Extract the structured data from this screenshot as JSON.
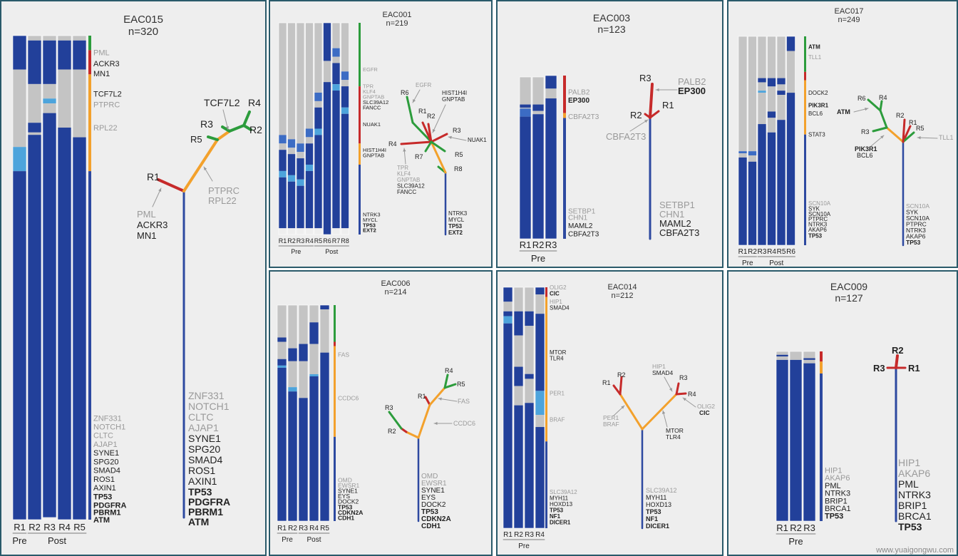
{
  "colors": {
    "dark": "#22409a",
    "mid": "#3c6cc4",
    "light": "#4da4dc",
    "grey": "#c4c4c4",
    "red": "#c62a2a",
    "orange": "#f3a12c",
    "green": "#2c9c3c",
    "trunk": "#2d49a0",
    "label_grey": "#9a9a9a",
    "label_dark": "#222222"
  },
  "watermark": "www.yuaigongwu.com",
  "panels": [
    {
      "id": "eac015",
      "name": "EAC015",
      "n": "n=320",
      "regions": [
        "R1",
        "R2",
        "R3",
        "R4",
        "R5"
      ],
      "groups": [
        {
          "label": "Pre",
          "from": 0,
          "to": 0
        },
        {
          "label": "Post",
          "from": 1,
          "to": 4
        }
      ],
      "stripe": [
        {
          "color": "green",
          "frac": 0.03
        },
        {
          "color": "red",
          "frac": 0.05
        },
        {
          "color": "orange",
          "frac": 0.2
        },
        {
          "color": "trunk",
          "frac": 0.72
        }
      ],
      "bar_labels": [
        {
          "text": "PML",
          "style": "grey",
          "at": 0.035
        },
        {
          "text": "ACKR3",
          "style": "dark",
          "at": 0.058
        },
        {
          "text": "MN1",
          "style": "dark",
          "at": 0.078
        },
        {
          "text": "TCF7L2",
          "style": "dark",
          "at": 0.12
        },
        {
          "text": "PTPRC",
          "style": "grey",
          "at": 0.142
        },
        {
          "text": "RPL22",
          "style": "grey",
          "at": 0.19
        },
        {
          "text": "ZNF331",
          "style": "grey",
          "at": 0.79
        },
        {
          "text": "NOTCH1",
          "style": "grey",
          "at": 0.808
        },
        {
          "text": "CLTC",
          "style": "grey",
          "at": 0.826
        },
        {
          "text": "AJAP1",
          "style": "grey",
          "at": 0.844
        },
        {
          "text": "SYNE1",
          "style": "dark",
          "at": 0.862
        },
        {
          "text": "SPG20",
          "style": "dark",
          "at": 0.88
        },
        {
          "text": "SMAD4",
          "style": "dark",
          "at": 0.898
        },
        {
          "text": "ROS1",
          "style": "dark",
          "at": 0.916
        },
        {
          "text": "AXIN1",
          "style": "dark",
          "at": 0.934
        },
        {
          "text": "TP53",
          "style": "bold",
          "at": 0.952
        },
        {
          "text": "PDGFRA",
          "style": "bold",
          "at": 0.97
        },
        {
          "text": "PBRM1",
          "style": "bold",
          "at": 0.985
        },
        {
          "text": "ATM",
          "style": "bold",
          "at": 1.0
        }
      ],
      "tree_labels": {
        "R1": "R1",
        "R2": "R2",
        "R3": "R3",
        "R4": "R4",
        "R5": "R5",
        "top_gene": "TCF7L2",
        "mid_genes": [
          "PTPRC",
          "RPL22"
        ],
        "r1_genes": [
          "PML",
          "ACKR3",
          "MN1"
        ],
        "trunk_genes_grey": [
          "ZNF331",
          "NOTCH1",
          "CLTC",
          "AJAP1"
        ],
        "trunk_genes_dark": [
          "SYNE1",
          "SPG20",
          "SMAD4",
          "ROS1",
          "AXIN1"
        ],
        "trunk_genes_bold": [
          "TP53",
          "PDGFRA",
          "PBRM1",
          "ATM"
        ]
      }
    },
    {
      "id": "eac001",
      "name": "EAC001",
      "n": "n=219",
      "regions": [
        "R1",
        "R2",
        "R3",
        "R4",
        "R5",
        "R6",
        "R7",
        "R8"
      ],
      "groups": [
        {
          "label": "Pre",
          "from": 0,
          "to": 3
        },
        {
          "label": "Post",
          "from": 4,
          "to": 7
        }
      ],
      "stripe": [
        {
          "color": "green",
          "frac": 0.3
        },
        {
          "color": "red",
          "frac": 0.27
        },
        {
          "color": "orange",
          "frac": 0.1
        },
        {
          "color": "trunk",
          "frac": 0.33
        }
      ],
      "bar_labels": [
        {
          "text": "EGFR",
          "style": "grey",
          "at": 0.22
        },
        {
          "text": "TPR",
          "style": "grey",
          "at": 0.3
        },
        {
          "text": "KLF4",
          "style": "grey",
          "at": 0.325
        },
        {
          "text": "GNPTAB",
          "style": "grey",
          "at": 0.35
        },
        {
          "text": "SLC39A12",
          "style": "dark",
          "at": 0.375
        },
        {
          "text": "FANCC",
          "style": "dark",
          "at": 0.4
        },
        {
          "text": "NUAK1",
          "style": "dark",
          "at": 0.48
        },
        {
          "text": "HIST1H4I",
          "style": "dark",
          "at": 0.6
        },
        {
          "text": "GNPTAB",
          "style": "dark",
          "at": 0.625
        },
        {
          "text": "NTRK3",
          "style": "dark",
          "at": 0.905
        },
        {
          "text": "MYCL",
          "style": "dark",
          "at": 0.93
        },
        {
          "text": "TP53",
          "style": "bold",
          "at": 0.955
        },
        {
          "text": "EXT2",
          "style": "bold",
          "at": 0.98
        }
      ],
      "tree_labels": {
        "R1": "R1",
        "R2": "R2",
        "R3": "R3",
        "R4": "R4",
        "R5": "R5",
        "R6": "R6",
        "R7": "R7",
        "R8": "R8",
        "egfr": "EGFR",
        "hist": [
          "HIST1H4I",
          "GNPTAB"
        ],
        "nuak": "NUAK1",
        "r4_genes": [
          "TPR",
          "KLF4",
          "GNPTAB",
          "SLC39A12",
          "FANCC"
        ],
        "trunk_genes_dark": [
          "NTRK3",
          "MYCL"
        ],
        "trunk_genes_bold": [
          "TP53",
          "EXT2"
        ]
      }
    },
    {
      "id": "eac003",
      "name": "EAC003",
      "n": "n=123",
      "regions": [
        "R1",
        "R2",
        "R3"
      ],
      "groups": [
        {
          "label": "Pre",
          "from": 0,
          "to": 2
        }
      ],
      "stripe": [
        {
          "color": "red",
          "frac": 0.23
        },
        {
          "color": "orange",
          "frac": 0.03
        },
        {
          "color": "trunk",
          "frac": 0.74
        }
      ],
      "bar_labels": [
        {
          "text": "PALB2",
          "style": "grey",
          "at": 0.1
        },
        {
          "text": "EP300",
          "style": "bold",
          "at": 0.15
        },
        {
          "text": "CBFA2T3",
          "style": "grey",
          "at": 0.25
        },
        {
          "text": "SETBP1",
          "style": "grey",
          "at": 0.83
        },
        {
          "text": "CHN1",
          "style": "grey",
          "at": 0.87
        },
        {
          "text": "MAML2",
          "style": "dark",
          "at": 0.92
        },
        {
          "text": "CBFA2T3",
          "style": "dark",
          "at": 0.97
        }
      ],
      "tree_labels": {
        "R1": "R1",
        "R2": "R2",
        "R3": "R3",
        "palb": "PALB2",
        "ep300": "EP300",
        "cbfa": "CBFA2T3",
        "trunk_genes_grey": [
          "SETBP1",
          "CHN1"
        ],
        "trunk_genes_dark": [
          "MAML2",
          "CBFA2T3"
        ]
      }
    },
    {
      "id": "eac017",
      "name": "EAC017",
      "n": "n=249",
      "regions": [
        "R1",
        "R2",
        "R3",
        "R4",
        "R5",
        "R6"
      ],
      "groups": [
        {
          "label": "Pre",
          "from": 0,
          "to": 1
        },
        {
          "label": "Post",
          "from": 2,
          "to": 5
        }
      ],
      "stripe": [
        {
          "color": "green",
          "frac": 0.17
        },
        {
          "color": "red",
          "frac": 0.04
        },
        {
          "color": "orange",
          "frac": 0.26
        },
        {
          "color": "trunk",
          "frac": 0.53
        }
      ],
      "bar_labels": [
        {
          "text": "ATM",
          "style": "bold",
          "at": 0.05
        },
        {
          "text": "TLL1",
          "style": "grey",
          "at": 0.1
        },
        {
          "text": "DOCK2",
          "style": "dark",
          "at": 0.27
        },
        {
          "text": "PIK3R1",
          "style": "bold",
          "at": 0.33
        },
        {
          "text": "BCL6",
          "style": "dark",
          "at": 0.37
        },
        {
          "text": "STAT3",
          "style": "dark",
          "at": 0.47
        },
        {
          "text": "SCN10A",
          "style": "grey",
          "at": 0.8
        },
        {
          "text": "SYK",
          "style": "dark",
          "at": 0.825
        },
        {
          "text": "SCN10A",
          "style": "dark",
          "at": 0.85
        },
        {
          "text": "PTPRC",
          "style": "dark",
          "at": 0.875
        },
        {
          "text": "NTRK3",
          "style": "dark",
          "at": 0.9
        },
        {
          "text": "AKAP6",
          "style": "dark",
          "at": 0.925
        },
        {
          "text": "TP53",
          "style": "bold",
          "at": 0.955
        }
      ],
      "tree_labels": {
        "R1": "R1",
        "R2": "R2",
        "R3": "R3",
        "R4": "R4",
        "R5": "R5",
        "R6": "R6",
        "atm": "ATM",
        "tll1": "TLL1",
        "pik": "PIK3R1",
        "bcl6": "BCL6",
        "trunk_genes_grey": [
          "SCN10A"
        ],
        "trunk_genes_dark": [
          "SYK",
          "SCN10A",
          "PTPRC",
          "NTRK3",
          "AKAP6"
        ],
        "trunk_genes_bold": [
          "TP53"
        ]
      }
    },
    {
      "id": "eac006",
      "name": "EAC006",
      "n": "n=214",
      "regions": [
        "R1",
        "R2",
        "R3",
        "R4",
        "R5"
      ],
      "groups": [
        {
          "label": "Pre",
          "from": 0,
          "to": 1
        },
        {
          "label": "Post",
          "from": 2,
          "to": 4
        }
      ],
      "stripe": [
        {
          "color": "green",
          "frac": 0.17
        },
        {
          "color": "red",
          "frac": 0.02
        },
        {
          "color": "orange",
          "frac": 0.42
        },
        {
          "color": "trunk",
          "frac": 0.39
        }
      ],
      "bar_labels": [
        {
          "text": "FAS",
          "style": "grey",
          "at": 0.23
        },
        {
          "text": "CCDC6",
          "style": "grey",
          "at": 0.43
        },
        {
          "text": "OMD",
          "style": "grey",
          "at": 0.81
        },
        {
          "text": "EWSR1",
          "style": "grey",
          "at": 0.835
        },
        {
          "text": "SYNE1",
          "style": "dark",
          "at": 0.86
        },
        {
          "text": "EYS",
          "style": "dark",
          "at": 0.885
        },
        {
          "text": "DOCK2",
          "style": "dark",
          "at": 0.91
        },
        {
          "text": "TP53",
          "style": "bold",
          "at": 0.935
        },
        {
          "text": "CDKN2A",
          "style": "bold",
          "at": 0.96
        },
        {
          "text": "CDH1",
          "style": "bold",
          "at": 0.985
        }
      ],
      "tree_labels": {
        "R1": "R1",
        "R2": "R2",
        "R3": "R3",
        "R4": "R4",
        "R5": "R5",
        "fas": "FAS",
        "ccdc6": "CCDC6",
        "trunk_genes_grey": [
          "OMD",
          "EWSR1"
        ],
        "trunk_genes_dark": [
          "SYNE1",
          "EYS",
          "DOCK2"
        ],
        "trunk_genes_bold": [
          "TP53",
          "CDKN2A",
          "CDH1"
        ]
      }
    },
    {
      "id": "eac014",
      "name": "EAC014",
      "n": "n=212",
      "regions": [
        "R1",
        "R2",
        "R3",
        "R4"
      ],
      "groups": [
        {
          "label": "Pre",
          "from": 0,
          "to": 3
        }
      ],
      "stripe": [
        {
          "color": "red",
          "frac": 0.04
        },
        {
          "color": "orange",
          "frac": 0.6
        },
        {
          "color": "trunk",
          "frac": 0.36
        }
      ],
      "bar_labels": [
        {
          "text": "OLIG2",
          "style": "grey",
          "at": 0.0
        },
        {
          "text": "CIC",
          "style": "bold",
          "at": 0.025
        },
        {
          "text": "HIP1",
          "style": "grey",
          "at": 0.06
        },
        {
          "text": "SMAD4",
          "style": "dark",
          "at": 0.085
        },
        {
          "text": "MTOR",
          "style": "dark",
          "at": 0.27
        },
        {
          "text": "TLR4",
          "style": "dark",
          "at": 0.295
        },
        {
          "text": "PER1",
          "style": "grey",
          "at": 0.44
        },
        {
          "text": "BRAF",
          "style": "grey",
          "at": 0.55
        },
        {
          "text": "SLC39A12",
          "style": "grey",
          "at": 0.85
        },
        {
          "text": "MYH11",
          "style": "dark",
          "at": 0.875
        },
        {
          "text": "HOXD13",
          "style": "dark",
          "at": 0.9
        },
        {
          "text": "TP53",
          "style": "bold",
          "at": 0.925
        },
        {
          "text": "NF1",
          "style": "bold",
          "at": 0.95
        },
        {
          "text": "DICER1",
          "style": "bold",
          "at": 0.975
        }
      ],
      "tree_labels": {
        "R1": "R1",
        "R2": "R2",
        "R3": "R3",
        "R4": "R4",
        "hip": [
          "HIP1",
          "SMAD4"
        ],
        "olig": "OLIG2",
        "cic": "CIC",
        "per": [
          "PER1",
          "BRAF"
        ],
        "mtor": [
          "MTOR",
          "TLR4"
        ],
        "trunk_genes_grey": [
          "SLC39A12"
        ],
        "trunk_genes_dark": [
          "MYH11",
          "HOXD13"
        ],
        "trunk_genes_bold": [
          "TP53",
          "NF1",
          "DICER1"
        ]
      }
    },
    {
      "id": "eac009",
      "name": "EAC009",
      "n": "n=127",
      "regions": [
        "R1",
        "R2",
        "R3"
      ],
      "groups": [
        {
          "label": "Pre",
          "from": 0,
          "to": 2
        }
      ],
      "stripe": [
        {
          "color": "red",
          "frac": 0.06
        },
        {
          "color": "orange",
          "frac": 0.07
        },
        {
          "color": "trunk",
          "frac": 0.87
        }
      ],
      "bar_labels": [
        {
          "text": "HIP1",
          "style": "grey",
          "at": 0.7
        },
        {
          "text": "AKAP6",
          "style": "grey",
          "at": 0.745
        },
        {
          "text": "PML",
          "style": "dark",
          "at": 0.79
        },
        {
          "text": "NTRK3",
          "style": "dark",
          "at": 0.835
        },
        {
          "text": "BRIP1",
          "style": "dark",
          "at": 0.88
        },
        {
          "text": "BRCA1",
          "style": "dark",
          "at": 0.925
        },
        {
          "text": "TP53",
          "style": "bold",
          "at": 0.97
        }
      ],
      "tree_labels": {
        "R1": "R1",
        "R2": "R2",
        "R3": "R3",
        "trunk_genes_grey": [
          "HIP1",
          "AKAP6"
        ],
        "trunk_genes_dark": [
          "PML",
          "NTRK3",
          "BRIP1",
          "BRCA1"
        ],
        "trunk_genes_bold": [
          "TP53"
        ]
      }
    }
  ]
}
